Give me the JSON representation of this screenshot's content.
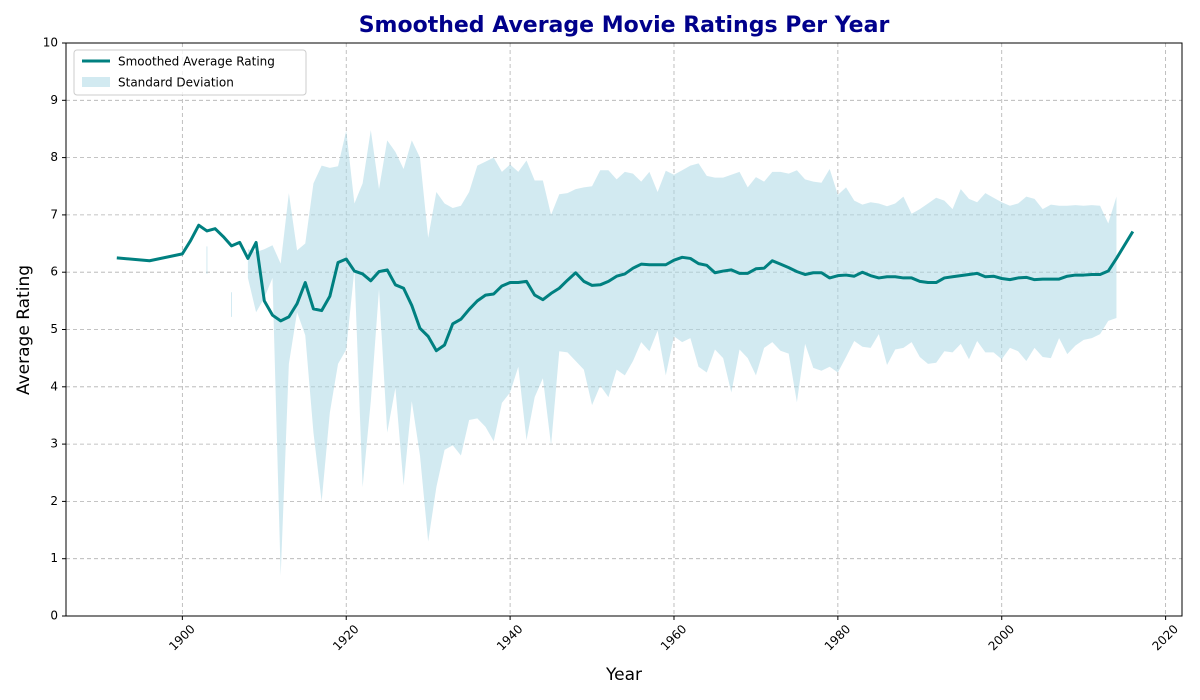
{
  "chart_data": {
    "type": "line-band",
    "title": "Smoothed Average Movie Ratings Per Year",
    "xlabel": "Year",
    "ylabel": "Average Rating",
    "x": [
      1892,
      1896,
      1900,
      1901,
      1902,
      1903,
      1904,
      1905,
      1906,
      1907,
      1908,
      1909,
      1910,
      1911,
      1912,
      1913,
      1914,
      1915,
      1916,
      1917,
      1918,
      1919,
      1920,
      1921,
      1922,
      1923,
      1924,
      1925,
      1926,
      1927,
      1928,
      1929,
      1930,
      1931,
      1932,
      1933,
      1934,
      1935,
      1936,
      1937,
      1938,
      1939,
      1940,
      1941,
      1942,
      1943,
      1944,
      1945,
      1946,
      1947,
      1948,
      1949,
      1950,
      1951,
      1952,
      1953,
      1954,
      1955,
      1956,
      1957,
      1958,
      1959,
      1960,
      1961,
      1962,
      1963,
      1964,
      1965,
      1966,
      1967,
      1968,
      1969,
      1970,
      1971,
      1972,
      1973,
      1974,
      1975,
      1976,
      1977,
      1978,
      1979,
      1980,
      1981,
      1982,
      1983,
      1984,
      1985,
      1986,
      1987,
      1988,
      1989,
      1990,
      1991,
      1992,
      1993,
      1994,
      1995,
      1996,
      1997,
      1998,
      1999,
      2000,
      2001,
      2002,
      2003,
      2004,
      2005,
      2006,
      2007,
      2008,
      2009,
      2010,
      2011,
      2012,
      2013,
      2014,
      2016
    ],
    "series": [
      {
        "name": "Smoothed Average Rating",
        "color": "#008080",
        "values": [
          6.25,
          6.2,
          6.32,
          6.55,
          6.82,
          6.72,
          6.76,
          6.62,
          6.46,
          6.52,
          6.24,
          6.52,
          5.5,
          5.25,
          5.15,
          5.22,
          5.45,
          5.82,
          5.36,
          5.33,
          5.58,
          6.17,
          6.23,
          6.02,
          5.97,
          5.85,
          6.01,
          6.04,
          5.78,
          5.72,
          5.42,
          5.02,
          4.88,
          4.63,
          4.73,
          5.1,
          5.18,
          5.35,
          5.5,
          5.6,
          5.62,
          5.76,
          5.82,
          5.82,
          5.84,
          5.6,
          5.52,
          5.63,
          5.72,
          5.86,
          5.99,
          5.84,
          5.77,
          5.78,
          5.84,
          5.93,
          5.97,
          6.07,
          6.14,
          6.13,
          6.13,
          6.13,
          6.21,
          6.26,
          6.24,
          6.15,
          6.12,
          5.99,
          6.02,
          6.04,
          5.98,
          5.98,
          6.06,
          6.07,
          6.2,
          6.14,
          6.08,
          6.01,
          5.96,
          5.99,
          5.99,
          5.9,
          5.94,
          5.95,
          5.93,
          6.0,
          5.94,
          5.9,
          5.92,
          5.92,
          5.9,
          5.9,
          5.84,
          5.82,
          5.82,
          5.9,
          5.92,
          5.94,
          5.96,
          5.98,
          5.92,
          5.93,
          5.89,
          5.87,
          5.9,
          5.91,
          5.87,
          5.88,
          5.88,
          5.88,
          5.93,
          5.95,
          5.95,
          5.96,
          5.96,
          6.02,
          6.24,
          6.71
        ]
      },
      {
        "name": "Standard Deviation",
        "color": "#add8e6",
        "upper": [
          null,
          null,
          null,
          null,
          null,
          6.45,
          null,
          null,
          5.65,
          null,
          6.4,
          6.35,
          6.4,
          6.47,
          6.15,
          7.38,
          6.38,
          6.5,
          7.55,
          7.86,
          7.82,
          7.85,
          8.47,
          7.2,
          7.55,
          8.48,
          7.45,
          8.3,
          8.1,
          7.8,
          8.3,
          8.0,
          6.6,
          7.4,
          7.2,
          7.12,
          7.16,
          7.4,
          7.86,
          7.93,
          8.0,
          7.75,
          7.88,
          7.75,
          7.95,
          7.6,
          7.6,
          7.0,
          7.36,
          7.38,
          7.45,
          7.48,
          7.5,
          7.78,
          7.78,
          7.62,
          7.75,
          7.72,
          7.58,
          7.75,
          7.4,
          7.77,
          7.7,
          7.78,
          7.86,
          7.9,
          7.68,
          7.65,
          7.65,
          7.7,
          7.75,
          7.48,
          7.66,
          7.58,
          7.75,
          7.75,
          7.72,
          7.78,
          7.62,
          7.58,
          7.56,
          7.8,
          7.35,
          7.48,
          7.25,
          7.18,
          7.22,
          7.2,
          7.15,
          7.2,
          7.32,
          7.02,
          7.1,
          7.2,
          7.3,
          7.25,
          7.1,
          7.45,
          7.28,
          7.22,
          7.38,
          7.3,
          7.22,
          7.16,
          7.2,
          7.32,
          7.28,
          7.1,
          7.18,
          7.16,
          7.16,
          7.17,
          7.16,
          7.17,
          7.16,
          6.85,
          7.32,
          null
        ],
        "lower": [
          null,
          null,
          null,
          null,
          null,
          5.97,
          null,
          null,
          5.22,
          null,
          5.9,
          5.3,
          5.55,
          5.9,
          0.7,
          4.4,
          5.3,
          4.9,
          3.2,
          2.0,
          3.55,
          4.4,
          4.65,
          6.05,
          2.25,
          3.75,
          5.7,
          3.2,
          3.98,
          2.28,
          3.75,
          2.8,
          1.3,
          2.25,
          2.9,
          2.98,
          2.8,
          3.42,
          3.45,
          3.3,
          3.05,
          3.72,
          3.9,
          4.35,
          3.07,
          3.82,
          4.15,
          2.98,
          4.62,
          4.6,
          4.45,
          4.3,
          3.68,
          4.02,
          3.82,
          4.3,
          4.2,
          4.45,
          4.78,
          4.62,
          4.98,
          4.2,
          4.88,
          4.78,
          4.85,
          4.35,
          4.25,
          4.65,
          4.5,
          3.9,
          4.65,
          4.5,
          4.2,
          4.68,
          4.78,
          4.63,
          4.58,
          3.73,
          4.75,
          4.33,
          4.28,
          4.35,
          4.25,
          4.52,
          4.8,
          4.7,
          4.68,
          4.92,
          4.38,
          4.65,
          4.68,
          4.78,
          4.52,
          4.4,
          4.42,
          4.62,
          4.6,
          4.75,
          4.48,
          4.8,
          4.6,
          4.6,
          4.48,
          4.68,
          4.62,
          4.45,
          4.68,
          4.52,
          4.5,
          4.85,
          4.57,
          4.72,
          4.82,
          4.85,
          4.92,
          5.15,
          5.2,
          null
        ]
      }
    ],
    "xlim": [
      1885.8,
      2022
    ],
    "xticks": [
      1900,
      1920,
      1940,
      1960,
      1980,
      2000,
      2020
    ],
    "ylim": [
      0,
      10
    ],
    "yticks": [
      0,
      1,
      2,
      3,
      4,
      5,
      6,
      7,
      8,
      9,
      10
    ],
    "grid": true,
    "legend": "upper left"
  }
}
